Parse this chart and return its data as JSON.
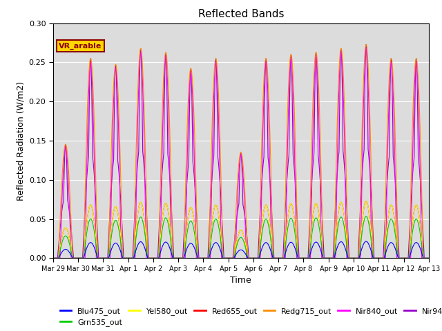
{
  "title": "Reflected Bands",
  "xlabel": "Time",
  "ylabel": "Reflected Radiation (W/m2)",
  "annotation_text": "VR_arable",
  "annotation_color": "#8B0000",
  "annotation_bg": "#FFD700",
  "bg_color": "#DCDCDC",
  "ylim": [
    0.0,
    0.3
  ],
  "bands": {
    "Blu475_out": {
      "color": "#0000FF"
    },
    "Grn535_out": {
      "color": "#00CC00"
    },
    "Yel580_out": {
      "color": "#FFFF00"
    },
    "Red655_out": {
      "color": "#FF0000"
    },
    "Redg715_out": {
      "color": "#FF8C00"
    },
    "Nir840_out": {
      "color": "#FF00FF"
    },
    "Nir945_out": {
      "color": "#9900CC"
    }
  },
  "tick_labels": [
    "Mar 29",
    "Mar 30",
    "Mar 31",
    "Apr 1",
    "Apr 2",
    "Apr 3",
    "Apr 4",
    "Apr 5",
    "Apr 6",
    "Apr 7",
    "Apr 8",
    "Apr 9",
    "Apr 10",
    "Apr 11",
    "Apr 12",
    "Apr 13"
  ],
  "peak_scales": [
    0.57,
    1.0,
    0.97,
    1.05,
    1.03,
    0.95,
    1.0,
    0.53,
    1.0,
    1.02,
    1.03,
    1.05,
    1.07,
    1.0
  ],
  "base_scales": {
    "Blu475_out": 0.02,
    "Grn535_out": 0.05,
    "Yel580_out": 0.068,
    "Red655_out": 0.068,
    "Redg715_out": 0.255,
    "Nir840_out": 0.25,
    "Nir945_out": 0.255
  }
}
